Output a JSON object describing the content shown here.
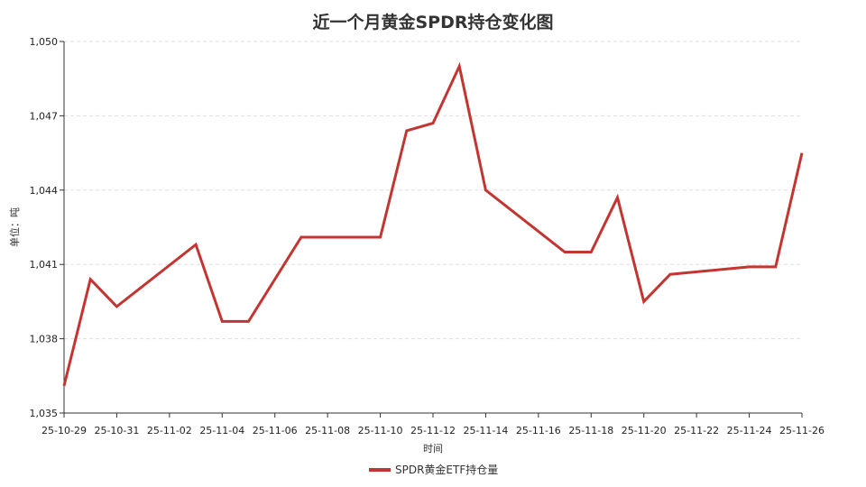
{
  "chart_data": {
    "type": "line",
    "title": "近一个月黄金SPDR持仓变化图",
    "xlabel": "时间",
    "ylabel": "单位：吨",
    "ylim": [
      1035,
      1050
    ],
    "yticks": [
      1035,
      1038,
      1041,
      1044,
      1047,
      1050
    ],
    "ytick_labels": [
      "1,035",
      "1,038",
      "1,041",
      "1,044",
      "1,047",
      "1,050"
    ],
    "xlim": [
      "2025-10-29",
      "2025-11-26"
    ],
    "xticks": [
      "2025-10-29",
      "2025-10-31",
      "2025-11-02",
      "2025-11-04",
      "2025-11-06",
      "2025-11-08",
      "2025-11-10",
      "2025-11-12",
      "2025-11-14",
      "2025-11-16",
      "2025-11-18",
      "2025-11-20",
      "2025-11-22",
      "2025-11-24",
      "2025-11-26"
    ],
    "xtick_labels": [
      "25-10-29",
      "25-10-31",
      "25-11-02",
      "25-11-04",
      "25-11-06",
      "25-11-08",
      "25-11-10",
      "25-11-12",
      "25-11-14",
      "25-11-16",
      "25-11-18",
      "25-11-20",
      "25-11-22",
      "25-11-24",
      "25-11-26"
    ],
    "grid": "horizontal dashed",
    "legend_position": "bottom-center",
    "series": [
      {
        "name": "SPDR黄金ETF持仓量",
        "color": "#c23531",
        "x": [
          "2025-10-29",
          "2025-10-30",
          "2025-10-31",
          "2025-11-03",
          "2025-11-04",
          "2025-11-05",
          "2025-11-07",
          "2025-11-10",
          "2025-11-11",
          "2025-11-12",
          "2025-11-13",
          "2025-11-14",
          "2025-11-17",
          "2025-11-18",
          "2025-11-19",
          "2025-11-20",
          "2025-11-21",
          "2025-11-24",
          "2025-11-25",
          "2025-11-26"
        ],
        "y": [
          1036.1,
          1040.4,
          1039.3,
          1041.8,
          1038.7,
          1038.7,
          1042.1,
          1042.1,
          1046.4,
          1046.7,
          1049.0,
          1044.0,
          1041.5,
          1041.5,
          1043.7,
          1039.5,
          1040.6,
          1040.9,
          1040.9,
          1045.5
        ]
      }
    ]
  }
}
